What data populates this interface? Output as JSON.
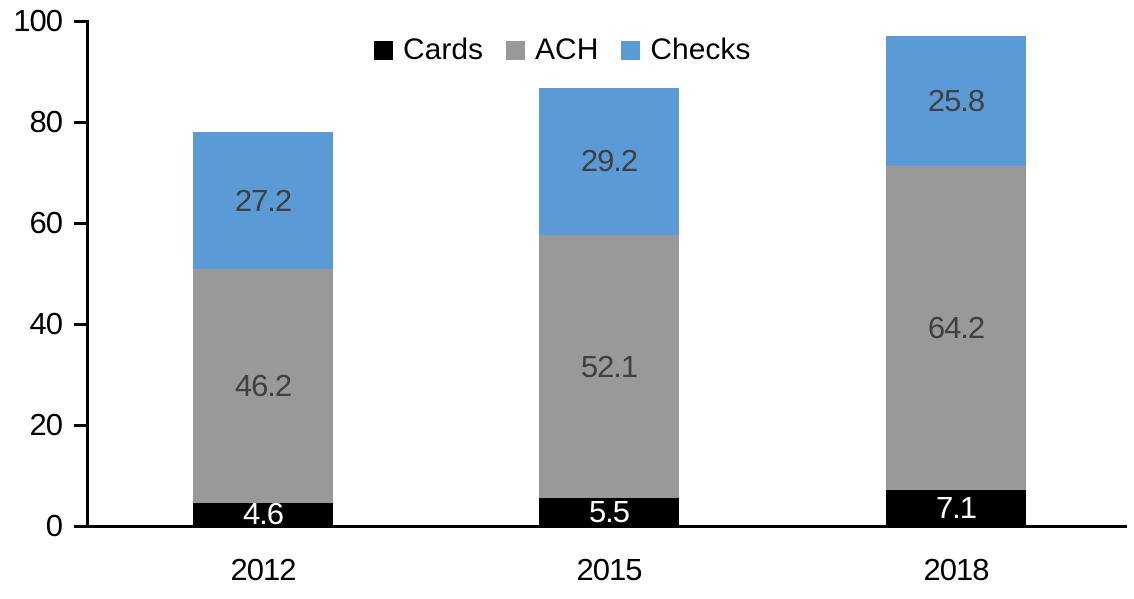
{
  "chart_data": {
    "type": "bar",
    "stacked": true,
    "categories": [
      "2012",
      "2015",
      "2018"
    ],
    "series": [
      {
        "name": "Cards",
        "color": "#000000",
        "label_color": "#FFFFFF",
        "values": [
          4.6,
          5.5,
          7.1
        ]
      },
      {
        "name": "ACH",
        "color": "#999999",
        "label_color": "#404040",
        "values": [
          46.2,
          52.1,
          64.2
        ]
      },
      {
        "name": "Checks",
        "color": "#5B9BD5",
        "label_color": "#404040",
        "values": [
          27.2,
          29.2,
          25.8
        ]
      }
    ],
    "stack_order_bottom_to_top": [
      "Cards",
      "ACH",
      "Checks"
    ],
    "y_axis": {
      "min": 0,
      "max": 100,
      "tick_interval": 20,
      "tick_labels": [
        "0",
        "20",
        "40",
        "60",
        "80",
        "100"
      ]
    },
    "legend": {
      "position": "top-center",
      "entries": [
        "Cards",
        "ACH",
        "Checks"
      ]
    },
    "grid": false,
    "bar_totals": [
      78.0,
      86.8,
      97.1
    ],
    "colors": {
      "axis": "#000000",
      "background": "#FFFFFF",
      "tick_text": "#000000"
    }
  }
}
